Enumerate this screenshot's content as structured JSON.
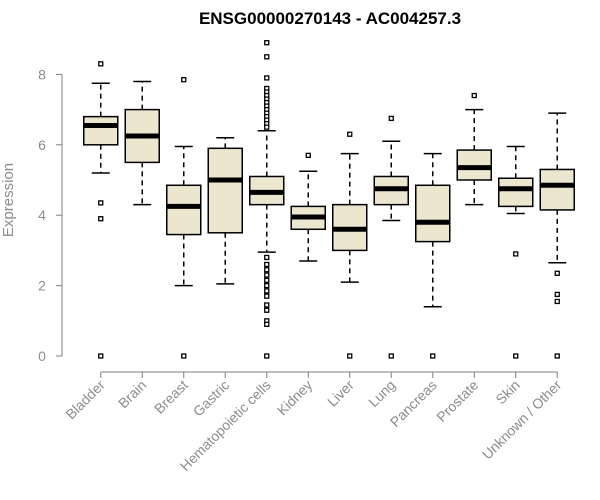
{
  "chart_data": {
    "type": "boxplot",
    "title": "ENSG00000270143 - AC004257.3",
    "xlabel": "",
    "ylabel": "Expression",
    "ylim": [
      0,
      9
    ],
    "yticks": [
      0,
      2,
      4,
      6,
      8
    ],
    "grid": false,
    "legend": "none",
    "colors": {
      "box_fill": "#ede6cf",
      "box_stroke": "#000000",
      "axis": "#7f7f7f",
      "text": "#8c8c8c"
    },
    "categories": [
      "Bladder",
      "Brain",
      "Breast",
      "Gastric",
      "Hematopoietic cells",
      "Kidney",
      "Liver",
      "Lung",
      "Pancreas",
      "Prostate",
      "Skin",
      "Unknown / Other"
    ],
    "boxes": [
      {
        "whisker_low": 5.2,
        "q1": 6.0,
        "median": 6.55,
        "q3": 6.8,
        "whisker_high": 7.75,
        "outliers": [
          8.3,
          4.35,
          3.9,
          0
        ]
      },
      {
        "whisker_low": 4.3,
        "q1": 5.5,
        "median": 6.25,
        "q3": 7.0,
        "whisker_high": 7.8,
        "outliers": []
      },
      {
        "whisker_low": 2.0,
        "q1": 3.45,
        "median": 4.25,
        "q3": 4.85,
        "whisker_high": 5.95,
        "outliers": [
          7.85,
          0
        ]
      },
      {
        "whisker_low": 2.05,
        "q1": 3.5,
        "median": 5.0,
        "q3": 5.9,
        "whisker_high": 6.2,
        "outliers": []
      },
      {
        "whisker_low": 2.95,
        "q1": 4.3,
        "median": 4.65,
        "q3": 5.1,
        "whisker_high": 6.4,
        "outliers": [
          8.9,
          8.5,
          7.9,
          7.6,
          7.5,
          7.4,
          7.3,
          7.2,
          7.1,
          7.0,
          6.9,
          6.8,
          6.7,
          6.6,
          6.5,
          2.8,
          2.6,
          2.45,
          2.3,
          2.15,
          2.0,
          1.85,
          1.7,
          1.45,
          1.3,
          1.0,
          0.9,
          0
        ]
      },
      {
        "whisker_low": 2.7,
        "q1": 3.6,
        "median": 3.95,
        "q3": 4.25,
        "whisker_high": 5.25,
        "outliers": [
          5.7
        ]
      },
      {
        "whisker_low": 2.1,
        "q1": 3.0,
        "median": 3.6,
        "q3": 4.3,
        "whisker_high": 5.75,
        "outliers": [
          6.3,
          0
        ]
      },
      {
        "whisker_low": 3.85,
        "q1": 4.3,
        "median": 4.75,
        "q3": 5.1,
        "whisker_high": 6.1,
        "outliers": [
          6.75,
          0
        ]
      },
      {
        "whisker_low": 1.4,
        "q1": 3.25,
        "median": 3.8,
        "q3": 4.85,
        "whisker_high": 5.75,
        "outliers": [
          0
        ]
      },
      {
        "whisker_low": 4.3,
        "q1": 5.0,
        "median": 5.35,
        "q3": 5.85,
        "whisker_high": 7.0,
        "outliers": [
          7.4
        ]
      },
      {
        "whisker_low": 4.05,
        "q1": 4.25,
        "median": 4.75,
        "q3": 5.05,
        "whisker_high": 5.95,
        "outliers": [
          2.9,
          0
        ]
      },
      {
        "whisker_low": 2.65,
        "q1": 4.15,
        "median": 4.85,
        "q3": 5.3,
        "whisker_high": 6.9,
        "outliers": [
          2.35,
          1.75,
          1.55,
          0
        ]
      }
    ]
  }
}
